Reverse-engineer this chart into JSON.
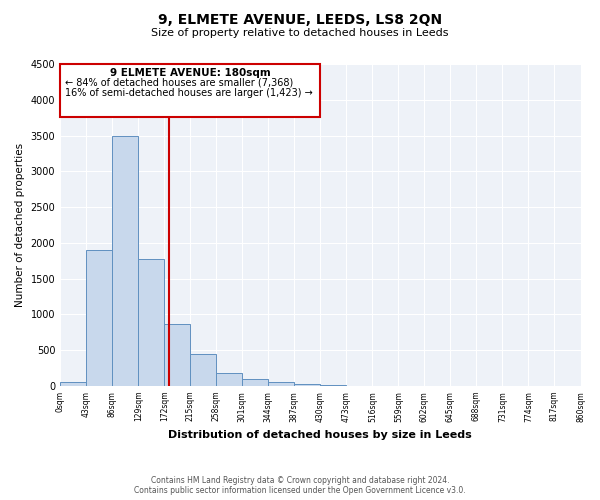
{
  "title": "9, ELMETE AVENUE, LEEDS, LS8 2QN",
  "subtitle": "Size of property relative to detached houses in Leeds",
  "bar_values": [
    50,
    1900,
    3500,
    1780,
    870,
    450,
    175,
    90,
    50,
    20,
    10,
    5,
    5,
    2,
    2,
    2,
    2,
    2,
    2,
    2
  ],
  "bin_edges": [
    0,
    43,
    86,
    129,
    172,
    215,
    258,
    301,
    344,
    387,
    430,
    473,
    516,
    559,
    602,
    645,
    688,
    731,
    774,
    817,
    860
  ],
  "tick_labels": [
    "0sqm",
    "43sqm",
    "86sqm",
    "129sqm",
    "172sqm",
    "215sqm",
    "258sqm",
    "301sqm",
    "344sqm",
    "387sqm",
    "430sqm",
    "473sqm",
    "516sqm",
    "559sqm",
    "602sqm",
    "645sqm",
    "688sqm",
    "731sqm",
    "774sqm",
    "817sqm",
    "860sqm"
  ],
  "ylabel": "Number of detached properties",
  "xlabel": "Distribution of detached houses by size in Leeds",
  "ylim": [
    0,
    4500
  ],
  "bar_color": "#c8d8ec",
  "bar_edge_color": "#6090c0",
  "vline_x": 180,
  "vline_color": "#cc0000",
  "annotation_title": "9 ELMETE AVENUE: 180sqm",
  "annotation_line1": "← 84% of detached houses are smaller (7,368)",
  "annotation_line2": "16% of semi-detached houses are larger (1,423) →",
  "annotation_box_color": "#cc0000",
  "background_color": "#eef2f8",
  "footer_line1": "Contains HM Land Registry data © Crown copyright and database right 2024.",
  "footer_line2": "Contains public sector information licensed under the Open Government Licence v3.0.",
  "yticks": [
    0,
    500,
    1000,
    1500,
    2000,
    2500,
    3000,
    3500,
    4000,
    4500
  ]
}
